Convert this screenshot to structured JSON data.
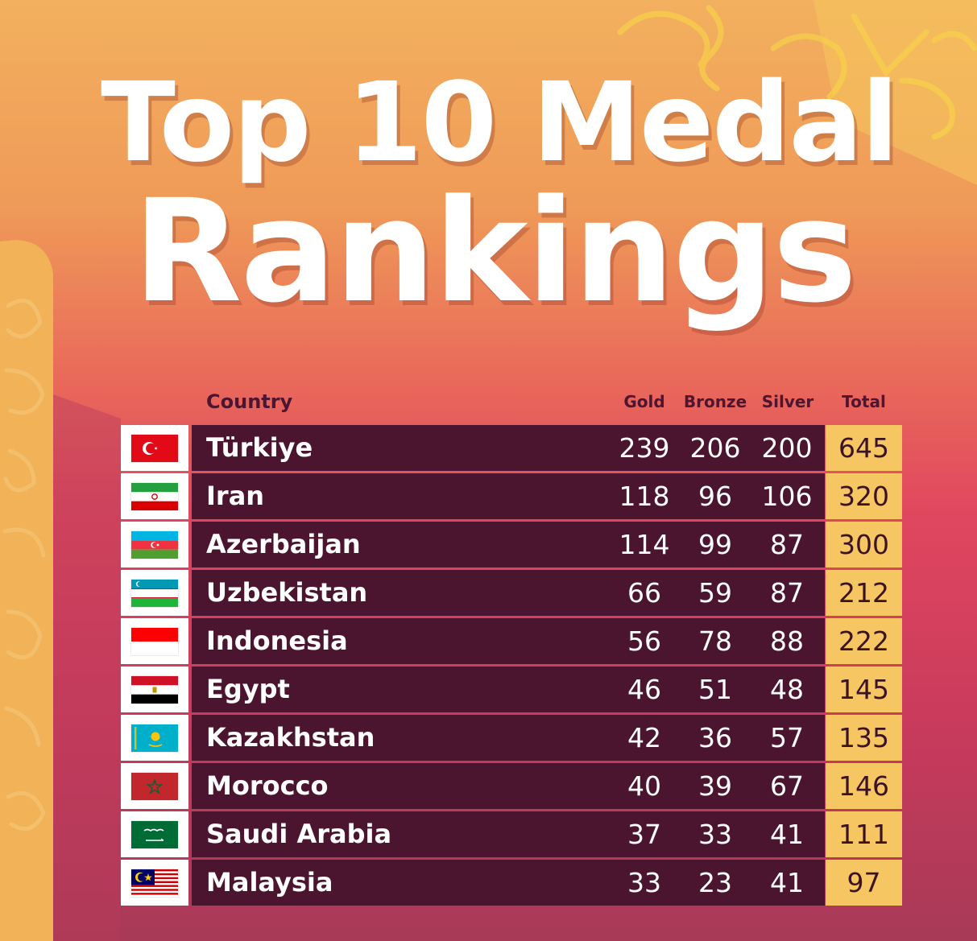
{
  "title": {
    "line1": "Top 10 Medal",
    "line2": "Rankings"
  },
  "colors": {
    "row_bg": "#4b1530",
    "total_bg": "#f6c662",
    "header_text": "#4d1530",
    "title_text": "#ffffff"
  },
  "headers": {
    "country": "Country",
    "gold": "Gold",
    "bronze": "Bronze",
    "silver": "Silver",
    "total": "Total"
  },
  "rows": [
    {
      "flag": "turkey-flag",
      "country": "Türkiye",
      "gold": "239",
      "bronze": "206",
      "silver": "200",
      "total": "645"
    },
    {
      "flag": "iran-flag",
      "country": "Iran",
      "gold": "118",
      "bronze": "96",
      "silver": "106",
      "total": "320"
    },
    {
      "flag": "azerbaijan-flag",
      "country": "Azerbaijan",
      "gold": "114",
      "bronze": "99",
      "silver": "87",
      "total": "300"
    },
    {
      "flag": "uzbekistan-flag",
      "country": "Uzbekistan",
      "gold": "66",
      "bronze": "59",
      "silver": "87",
      "total": "212"
    },
    {
      "flag": "indonesia-flag",
      "country": "Indonesia",
      "gold": "56",
      "bronze": "78",
      "silver": "88",
      "total": "222"
    },
    {
      "flag": "egypt-flag",
      "country": "Egypt",
      "gold": "46",
      "bronze": "51",
      "silver": "48",
      "total": "145"
    },
    {
      "flag": "kazakhstan-flag",
      "country": "Kazakhstan",
      "gold": "42",
      "bronze": "36",
      "silver": "57",
      "total": "135"
    },
    {
      "flag": "morocco-flag",
      "country": "Morocco",
      "gold": "40",
      "bronze": "39",
      "silver": "67",
      "total": "146"
    },
    {
      "flag": "saudi-arabia-flag",
      "country": "Saudi Arabia",
      "gold": "37",
      "bronze": "33",
      "silver": "41",
      "total": "111"
    },
    {
      "flag": "malaysia-flag",
      "country": "Malaysia",
      "gold": "33",
      "bronze": "23",
      "silver": "41",
      "total": "97"
    }
  ]
}
